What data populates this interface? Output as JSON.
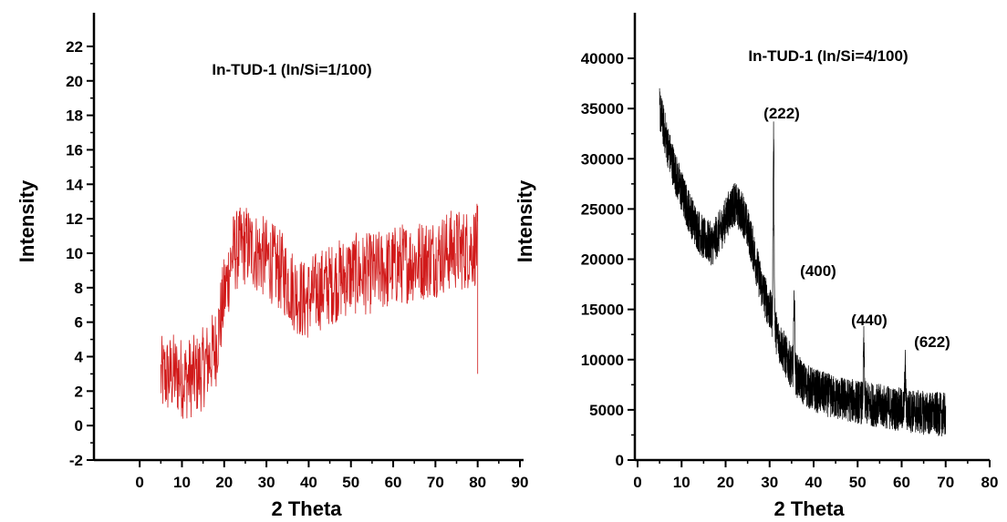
{
  "chart_data": [
    {
      "type": "line",
      "title": "In-TUD-1 (In/Si=1/100)",
      "xlabel": "2 Theta",
      "ylabel": "Intensity",
      "xlim": [
        -5,
        90
      ],
      "ylim": [
        -2,
        23
      ],
      "xticks": [
        0,
        10,
        20,
        30,
        40,
        50,
        60,
        70,
        80,
        90
      ],
      "yticks": [
        -2,
        0,
        2,
        4,
        6,
        8,
        10,
        12,
        14,
        16,
        18,
        20,
        22
      ],
      "line_color": "#d11a1a",
      "noise": 2.4,
      "series": [
        {
          "x": [
            5,
            8,
            11,
            14,
            16,
            18,
            20,
            22,
            25,
            28,
            31,
            34,
            36,
            39,
            42,
            46,
            50,
            54,
            58,
            62,
            66,
            70,
            74,
            77,
            80
          ],
          "y": [
            2.8,
            3.0,
            2.7,
            3.0,
            3.7,
            4.5,
            7.5,
            10.0,
            10.5,
            10.0,
            9.5,
            8.8,
            8.0,
            7.2,
            7.8,
            8.3,
            8.8,
            8.8,
            9.0,
            9.4,
            9.6,
            9.8,
            10.2,
            10.2,
            10.5
          ]
        }
      ]
    },
    {
      "type": "line",
      "title": "In-TUD-1 (In/Si=4/100)",
      "xlabel": "2 Theta",
      "ylabel": "Intensity",
      "xlim": [
        0,
        80
      ],
      "ylim": [
        0,
        42000
      ],
      "xticks": [
        0,
        10,
        20,
        30,
        40,
        50,
        60,
        70,
        80
      ],
      "yticks": [
        0,
        5000,
        10000,
        15000,
        20000,
        25000,
        30000,
        35000,
        40000
      ],
      "line_color": "#000000",
      "noise": 2200,
      "series": [
        {
          "x": [
            5,
            7,
            9,
            11,
            13,
            15,
            17,
            19,
            21,
            22,
            24,
            26,
            28,
            30,
            32,
            34,
            36,
            38,
            40,
            45,
            50,
            55,
            60,
            65,
            70
          ],
          "y": [
            35000,
            31000,
            28000,
            25500,
            23500,
            22000,
            21500,
            23000,
            25000,
            25500,
            24500,
            21500,
            17500,
            15000,
            12000,
            10000,
            8500,
            7500,
            7000,
            6200,
            5800,
            5400,
            5000,
            4700,
            4500
          ]
        }
      ],
      "peaks": [
        {
          "label": "(222)",
          "x": 30.9,
          "y": 32000
        },
        {
          "label": "(400)",
          "x": 35.6,
          "y": 16000
        },
        {
          "label": "(440)",
          "x": 51.4,
          "y": 11300
        },
        {
          "label": "(622)",
          "x": 60.8,
          "y": 9000
        }
      ]
    }
  ]
}
